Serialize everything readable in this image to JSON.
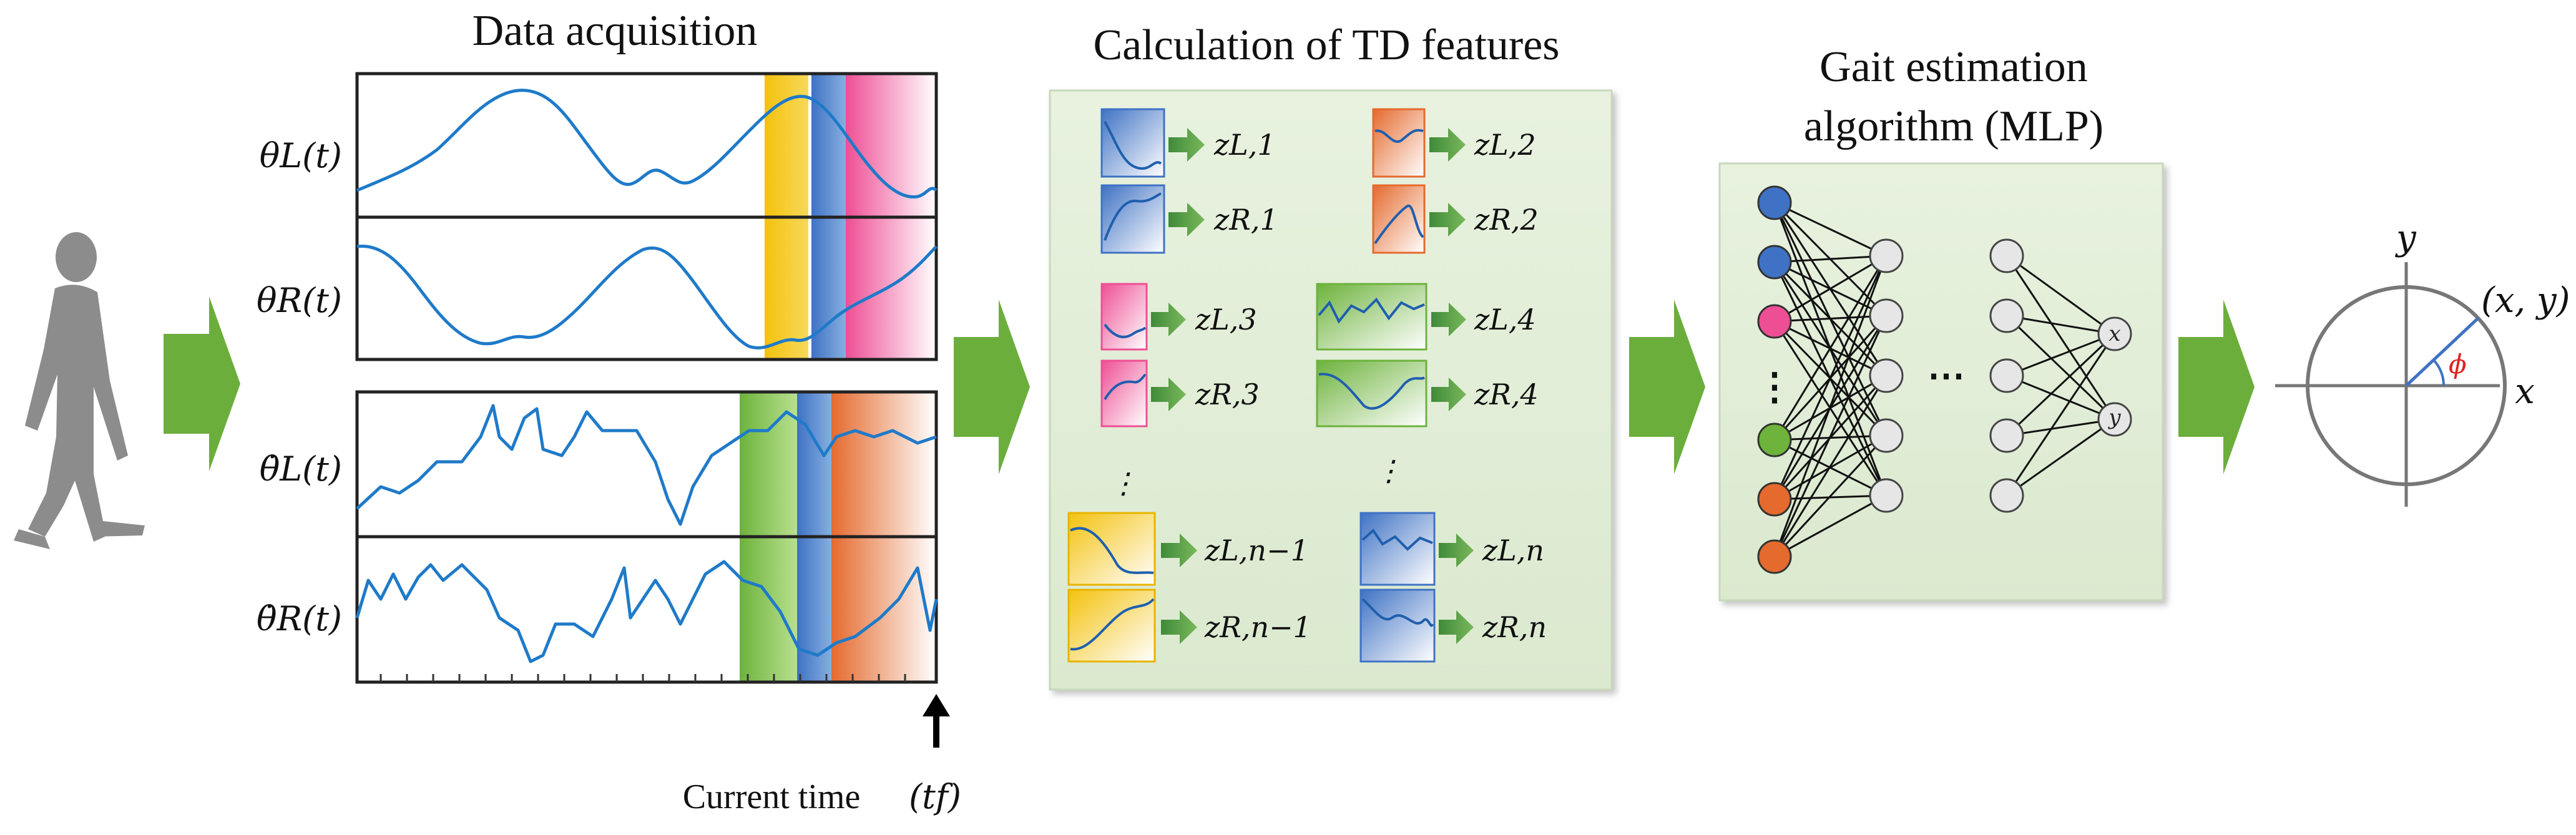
{
  "colors": {
    "arrow_green": "#6cae3c",
    "panel_bg": "#e3efd9",
    "signal_blue": "#1f7ac9",
    "yellow": "#f4c20d",
    "blue": "#4a7ec8",
    "pink": "#ee5a9a",
    "green": "#7dbf4a",
    "orange": "#e8733a"
  },
  "acquisition": {
    "title": "Data acquisition",
    "signal_labels": [
      "θL(t)",
      "θR(t)",
      "θ̇L(t)",
      "θ̇R(t)"
    ],
    "current_time_label": "Current time",
    "current_time_symbol": "(tf)"
  },
  "features": {
    "title": "Calculation of TD features",
    "labels": {
      "zL1": "zL,1",
      "zR1": "zR,1",
      "zL2": "zL,2",
      "zR2": "zR,2",
      "zL3": "zL,3",
      "zR3": "zR,3",
      "zL4": "zL,4",
      "zR4": "zR,4",
      "zLn1": "zL,n−1",
      "zRn1": "zR,n−1",
      "zLn": "zL,n",
      "zRn": "zR,n"
    },
    "ellipsis": "⋮"
  },
  "mlp": {
    "title_line1": "Gait estimation",
    "title_line2": "algorithm (MLP)",
    "output_x": "x",
    "output_y": "y",
    "hidden_ellipsis": "⋯",
    "input_ellipsis": "⋮"
  },
  "phase": {
    "x_axis": "x",
    "y_axis": "y",
    "point": "(x, y)",
    "angle": "ϕ"
  }
}
